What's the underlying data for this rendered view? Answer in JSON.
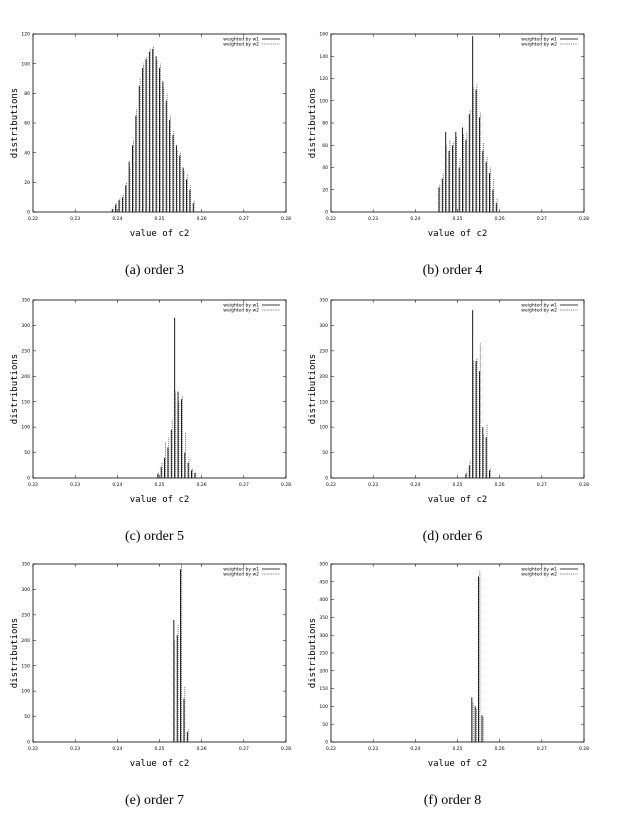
{
  "chart_data": [
    {
      "type": "bar",
      "caption": "(a) order 3",
      "xlabel": "value of c2",
      "ylabel": "distributions",
      "xlim": [
        0.22,
        0.28
      ],
      "ylim": [
        0,
        120
      ],
      "xticks": [
        "0.22",
        "0.23",
        "0.24",
        "0.25",
        "0.26",
        "0.27",
        "0.28"
      ],
      "yticks": [
        "0",
        "20",
        "40",
        "60",
        "80",
        "100",
        "120"
      ],
      "legend": [
        "weighted by w1",
        "weighted by w2"
      ],
      "legend_position": "top-right",
      "series": [
        {
          "name": "weighted by w1",
          "x": [
            0.2388,
            0.2396,
            0.2404,
            0.2412,
            0.242,
            0.2428,
            0.2436,
            0.2444,
            0.2452,
            0.246,
            0.2468,
            0.2476,
            0.2484,
            0.2492,
            0.25,
            0.2508,
            0.2516,
            0.2524,
            0.2532,
            0.254,
            0.2548,
            0.2556,
            0.2564,
            0.2572,
            0.258
          ],
          "values": [
            2,
            5,
            8,
            10,
            18,
            34,
            45,
            65,
            85,
            97,
            103,
            108,
            110,
            105,
            97,
            88,
            75,
            62,
            52,
            45,
            38,
            30,
            22,
            15,
            6
          ]
        },
        {
          "name": "weighted by w2",
          "x": [
            0.239,
            0.2398,
            0.2406,
            0.2414,
            0.2422,
            0.243,
            0.2438,
            0.2446,
            0.2454,
            0.2462,
            0.247,
            0.2478,
            0.2486,
            0.2494,
            0.2502,
            0.251,
            0.2518,
            0.2526,
            0.2534,
            0.2542,
            0.255,
            0.2558,
            0.2566,
            0.2574,
            0.2582
          ],
          "values": [
            3,
            6,
            9,
            12,
            20,
            30,
            48,
            70,
            90,
            100,
            105,
            110,
            112,
            102,
            100,
            84,
            80,
            65,
            55,
            42,
            40,
            28,
            25,
            18,
            8
          ]
        }
      ]
    },
    {
      "type": "bar",
      "caption": "(b) order 4",
      "xlabel": "value of c2",
      "ylabel": "distributions",
      "xlim": [
        0.22,
        0.28
      ],
      "ylim": [
        0,
        160
      ],
      "xticks": [
        "0.22",
        "0.23",
        "0.24",
        "0.25",
        "0.26",
        "0.27",
        "0.28"
      ],
      "yticks": [
        "0",
        "20",
        "40",
        "60",
        "80",
        "100",
        "120",
        "140",
        "160"
      ],
      "legend": [
        "weighted by w1",
        "weighted by w2"
      ],
      "legend_position": "top-right",
      "series": [
        {
          "name": "weighted by w1",
          "x": [
            0.2456,
            0.2464,
            0.2472,
            0.248,
            0.2488,
            0.2496,
            0.2504,
            0.2512,
            0.252,
            0.2528,
            0.2536,
            0.2544,
            0.2552,
            0.256,
            0.2568,
            0.2576,
            0.2584,
            0.2592
          ],
          "values": [
            22,
            30,
            72,
            55,
            60,
            72,
            40,
            76,
            65,
            88,
            158,
            110,
            85,
            55,
            45,
            35,
            20,
            8
          ]
        },
        {
          "name": "weighted by w2",
          "x": [
            0.2458,
            0.2466,
            0.2474,
            0.2482,
            0.249,
            0.2498,
            0.2506,
            0.2514,
            0.2522,
            0.253,
            0.2538,
            0.2546,
            0.2554,
            0.2562,
            0.257,
            0.2578,
            0.2586,
            0.2594
          ],
          "values": [
            25,
            35,
            60,
            65,
            62,
            68,
            48,
            70,
            72,
            92,
            112,
            115,
            90,
            62,
            50,
            40,
            30,
            12
          ]
        }
      ]
    },
    {
      "type": "bar",
      "caption": "(c) order 5",
      "xlabel": "value of c2",
      "ylabel": "distributions",
      "xlim": [
        0.22,
        0.28
      ],
      "ylim": [
        0,
        350
      ],
      "xticks": [
        "0.22",
        "0.23",
        "0.24",
        "0.25",
        "0.26",
        "0.27",
        "0.28"
      ],
      "yticks": [
        "0",
        "50",
        "100",
        "150",
        "200",
        "250",
        "300",
        "350"
      ],
      "legend": [
        "weighted by w1",
        "weighted by w2"
      ],
      "legend_position": "top-right",
      "series": [
        {
          "name": "weighted by w1",
          "x": [
            0.2496,
            0.2504,
            0.2512,
            0.252,
            0.2528,
            0.2536,
            0.2544,
            0.2552,
            0.256,
            0.2568,
            0.2576,
            0.2584
          ],
          "values": [
            8,
            22,
            40,
            60,
            95,
            315,
            170,
            155,
            50,
            30,
            15,
            10
          ]
        },
        {
          "name": "weighted by w2",
          "x": [
            0.2498,
            0.2506,
            0.2514,
            0.2522,
            0.253,
            0.2538,
            0.2546,
            0.2554,
            0.2562,
            0.257,
            0.2578,
            0.2586
          ],
          "values": [
            12,
            30,
            70,
            80,
            115,
            170,
            150,
            162,
            90,
            40,
            18,
            12
          ]
        }
      ]
    },
    {
      "type": "bar",
      "caption": "(d) order 6",
      "xlabel": "value of c2",
      "ylabel": "distributions",
      "xlim": [
        0.22,
        0.28
      ],
      "ylim": [
        0,
        350
      ],
      "xticks": [
        "0.22",
        "0.23",
        "0.24",
        "0.25",
        "0.26",
        "0.27",
        "0.28"
      ],
      "yticks": [
        "0",
        "50",
        "100",
        "150",
        "200",
        "250",
        "300",
        "350"
      ],
      "legend": [
        "weighted by w1",
        "weighted by w2"
      ],
      "legend_position": "top-right",
      "series": [
        {
          "name": "weighted by w1",
          "x": [
            0.252,
            0.2528,
            0.2536,
            0.2544,
            0.2552,
            0.256,
            0.2568,
            0.2576
          ],
          "values": [
            8,
            25,
            330,
            230,
            210,
            100,
            80,
            15
          ]
        },
        {
          "name": "weighted by w2",
          "x": [
            0.2522,
            0.253,
            0.2538,
            0.2546,
            0.2554,
            0.2562,
            0.257,
            0.2578
          ],
          "values": [
            12,
            35,
            230,
            235,
            265,
            85,
            105,
            20
          ]
        }
      ]
    },
    {
      "type": "bar",
      "caption": "(e) order 7",
      "xlabel": "value of c2",
      "ylabel": "distributions",
      "xlim": [
        0.22,
        0.28
      ],
      "ylim": [
        0,
        350
      ],
      "xticks": [
        "0.22",
        "0.23",
        "0.24",
        "0.25",
        "0.26",
        "0.27",
        "0.28"
      ],
      "yticks": [
        "0",
        "50",
        "100",
        "150",
        "200",
        "250",
        "300",
        "350"
      ],
      "legend": [
        "weighted by w1",
        "weighted by w2"
      ],
      "legend_position": "top-right",
      "series": [
        {
          "name": "weighted by w1",
          "x": [
            0.2534,
            0.2542,
            0.255,
            0.2558,
            0.2566
          ],
          "values": [
            240,
            210,
            340,
            85,
            20
          ]
        },
        {
          "name": "weighted by w2",
          "x": [
            0.2536,
            0.2544,
            0.2552,
            0.256,
            0.2568
          ],
          "values": [
            200,
            230,
            348,
            110,
            25
          ]
        }
      ]
    },
    {
      "type": "bar",
      "caption": "(f) order 8",
      "xlabel": "value of c2",
      "ylabel": "distributions",
      "xlim": [
        0.22,
        0.28
      ],
      "ylim": [
        0,
        500
      ],
      "xticks": [
        "0.22",
        "0.23",
        "0.24",
        "0.25",
        "0.26",
        "0.27",
        "0.28"
      ],
      "yticks": [
        "0",
        "50",
        "100",
        "150",
        "200",
        "250",
        "300",
        "350",
        "400",
        "450",
        "500"
      ],
      "legend": [
        "weighted by w1",
        "weighted by w2"
      ],
      "legend_position": "top-right",
      "series": [
        {
          "name": "weighted by w1",
          "x": [
            0.2534,
            0.2542,
            0.255,
            0.2558
          ],
          "values": [
            125,
            100,
            465,
            75
          ]
        },
        {
          "name": "weighted by w2",
          "x": [
            0.2537,
            0.2545,
            0.2553,
            0.2561
          ],
          "values": [
            110,
            95,
            480,
            70
          ]
        }
      ]
    }
  ]
}
